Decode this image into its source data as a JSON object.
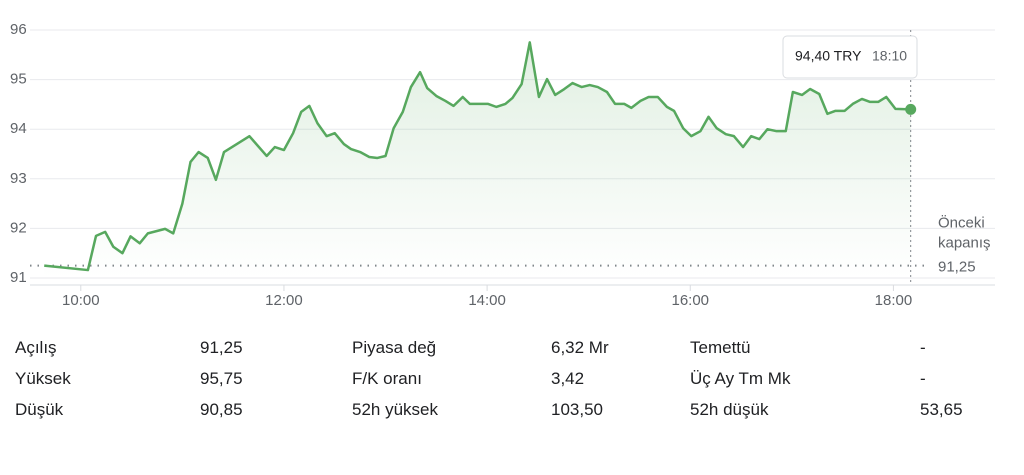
{
  "chart_data": {
    "type": "line",
    "color": "#57a85e",
    "x": [
      9.64,
      10.07,
      10.15,
      10.24,
      10.32,
      10.41,
      10.49,
      10.58,
      10.66,
      10.83,
      10.91,
      11.0,
      11.08,
      11.16,
      11.25,
      11.33,
      11.41,
      11.66,
      11.83,
      11.91,
      12.0,
      12.09,
      12.17,
      12.25,
      12.33,
      12.42,
      12.5,
      12.59,
      12.66,
      12.75,
      12.84,
      12.92,
      13.0,
      13.08,
      13.17,
      13.25,
      13.34,
      13.41,
      13.5,
      13.59,
      13.67,
      13.76,
      13.83,
      14.01,
      14.09,
      14.18,
      14.25,
      14.34,
      14.42,
      14.51,
      14.59,
      14.67,
      14.76,
      14.84,
      14.93,
      15.01,
      15.09,
      15.18,
      15.26,
      15.35,
      15.42,
      15.51,
      15.59,
      15.68,
      15.77,
      15.84,
      15.93,
      16.01,
      16.1,
      16.18,
      16.26,
      16.35,
      16.43,
      16.52,
      16.6,
      16.68,
      16.76,
      16.85,
      16.94,
      17.01,
      17.1,
      17.18,
      17.27,
      17.35,
      17.43,
      17.52,
      17.6,
      17.69,
      17.77,
      17.85,
      17.93,
      18.02,
      18.17
    ],
    "values": [
      91.25,
      91.16,
      91.85,
      91.93,
      91.63,
      91.5,
      91.84,
      91.7,
      91.9,
      91.99,
      91.9,
      92.5,
      93.34,
      93.54,
      93.42,
      92.98,
      93.54,
      93.86,
      93.46,
      93.64,
      93.58,
      93.92,
      94.35,
      94.47,
      94.12,
      93.86,
      93.92,
      93.7,
      93.6,
      93.54,
      93.44,
      93.42,
      93.46,
      94.02,
      94.35,
      94.85,
      95.15,
      94.83,
      94.67,
      94.57,
      94.47,
      94.65,
      94.51,
      94.51,
      94.45,
      94.51,
      94.63,
      94.91,
      95.75,
      94.65,
      95.01,
      94.69,
      94.81,
      94.93,
      94.85,
      94.89,
      94.85,
      94.75,
      94.51,
      94.51,
      94.43,
      94.57,
      94.65,
      94.65,
      94.45,
      94.37,
      94.02,
      93.86,
      93.96,
      94.25,
      94.02,
      93.9,
      93.86,
      93.64,
      93.86,
      93.8,
      94.0,
      93.96,
      93.96,
      94.75,
      94.69,
      94.81,
      94.71,
      94.31,
      94.37,
      94.37,
      94.51,
      94.61,
      94.55,
      94.55,
      94.65,
      94.41,
      94.4
    ],
    "xlim": [
      9.5,
      19
    ],
    "ylim": [
      91,
      96
    ],
    "xticks": [
      {
        "value": 10,
        "label": "10:00"
      },
      {
        "value": 12,
        "label": "12:00"
      },
      {
        "value": 14,
        "label": "14:00"
      },
      {
        "value": 16,
        "label": "16:00"
      },
      {
        "value": 18,
        "label": "18:00"
      }
    ],
    "yticks": [
      91,
      92,
      93,
      94,
      95,
      96
    ],
    "grid": true,
    "previous_close": {
      "value": 91.25,
      "label": "91,25"
    },
    "previous_close_title": [
      "Önceki",
      "kapanış"
    ],
    "tooltip": {
      "price": "94,40 TRY",
      "time": "18:10"
    }
  },
  "stats": [
    [
      [
        "Açılış",
        "91,25"
      ],
      [
        "Piyasa değ",
        "6,32 Mr"
      ],
      [
        "Temettü",
        "-"
      ]
    ],
    [
      [
        "Yüksek",
        "95,75"
      ],
      [
        "F/K oranı",
        "3,42"
      ],
      [
        "Üç Ay Tm Mk",
        "-"
      ]
    ],
    [
      [
        "Düşük",
        "90,85"
      ],
      [
        "52h yüksek",
        "103,50"
      ],
      [
        "52h düşük",
        "53,65"
      ]
    ]
  ]
}
